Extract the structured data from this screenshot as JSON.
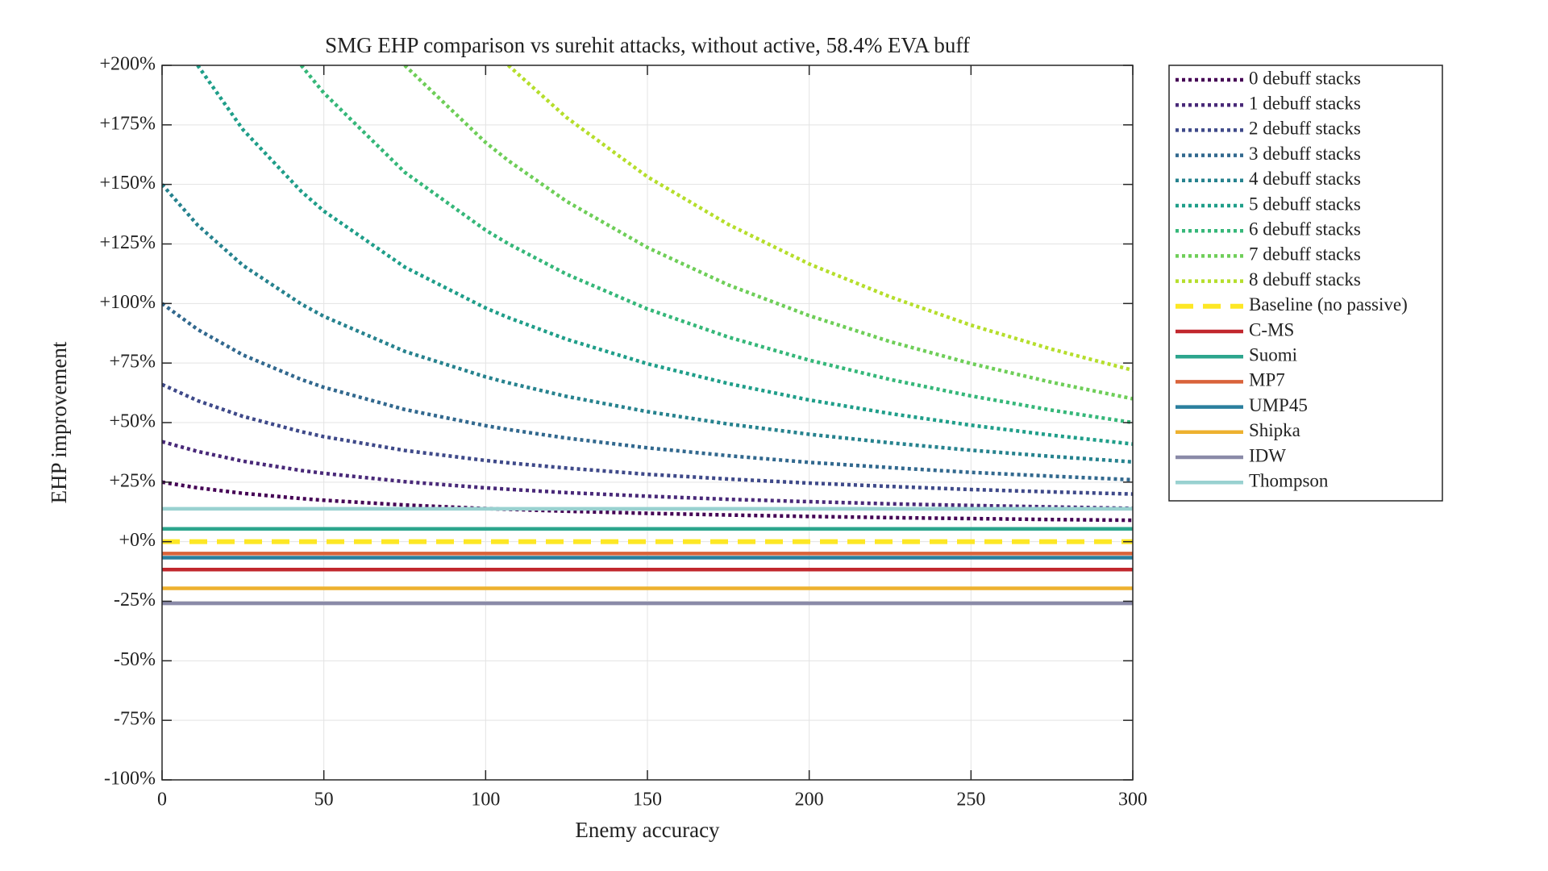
{
  "chart_data": {
    "type": "line",
    "title": "SMG EHP comparison vs surehit attacks, without active, 58.4% EVA buff",
    "x_label": "Enemy accuracy",
    "y_label": "EHP improvement",
    "x": [
      0,
      11,
      25,
      43,
      50,
      75,
      100,
      107,
      125,
      150,
      175,
      200,
      225,
      250,
      275,
      300
    ],
    "xlim": [
      0,
      300
    ],
    "xticks": [
      0,
      50,
      100,
      150,
      200,
      250,
      300
    ],
    "ylim": [
      -100,
      200
    ],
    "yticks": [
      {
        "value": -100,
        "label": "-100%"
      },
      {
        "value": -75,
        "label": "-75%"
      },
      {
        "value": -50,
        "label": "-50%"
      },
      {
        "value": -25,
        "label": "-25%"
      },
      {
        "value": 0,
        "label": "+0%"
      },
      {
        "value": 25,
        "label": "+25%"
      },
      {
        "value": 50,
        "label": "+50%"
      },
      {
        "value": 75,
        "label": "+75%"
      },
      {
        "value": 100,
        "label": "+100%"
      },
      {
        "value": 125,
        "label": "+125%"
      },
      {
        "value": 150,
        "label": "+150%"
      },
      {
        "value": 175,
        "label": "+175%"
      },
      {
        "value": 200,
        "label": "+200%"
      }
    ],
    "grid": true,
    "legend": "outside-right",
    "series": [
      {
        "name": "0 debuff stacks",
        "color": "#440154",
        "style": "dotted",
        "values": [
          25.0,
          22.6,
          20.3,
          18.1,
          17.4,
          15.4,
          13.9,
          13.6,
          12.8,
          11.9,
          11.2,
          10.6,
          10.1,
          9.7,
          9.3,
          9.0
        ]
      },
      {
        "name": "1 debuff stacks",
        "color": "#482878",
        "style": "dotted",
        "values": [
          42.0,
          37.9,
          33.8,
          29.9,
          28.7,
          25.2,
          22.6,
          22.0,
          20.6,
          19.1,
          17.8,
          16.8,
          15.9,
          15.2,
          14.6,
          14.0
        ]
      },
      {
        "name": "2 debuff stacks",
        "color": "#3e4989",
        "style": "dotted",
        "values": [
          66.0,
          59.2,
          52.6,
          46.2,
          44.1,
          38.3,
          34.1,
          33.1,
          30.9,
          28.3,
          26.3,
          24.6,
          23.2,
          21.9,
          20.9,
          20.0
        ]
      },
      {
        "name": "3 debuff stacks",
        "color": "#31688e",
        "style": "dotted",
        "values": [
          100.0,
          89.1,
          78.4,
          68.1,
          64.8,
          55.5,
          48.7,
          47.1,
          43.5,
          39.4,
          36.1,
          33.3,
          31.1,
          29.1,
          27.5,
          26.0
        ]
      },
      {
        "name": "4 debuff stacks",
        "color": "#26828e",
        "style": "dotted",
        "values": [
          150.0,
          132.9,
          116.0,
          99.8,
          94.6,
          79.9,
          69.2,
          66.7,
          61.0,
          54.6,
          49.4,
          45.1,
          41.5,
          38.4,
          35.8,
          33.5
        ]
      },
      {
        "name": "5 debuff stacks",
        "color": "#1f9e89",
        "style": "dotted",
        "values": [
          null,
          200.0,
          173.0,
          147.1,
          138.8,
          115.3,
          98.1,
          94.1,
          85.0,
          74.7,
          66.4,
          59.5,
          53.8,
          48.9,
          44.7,
          41.0
        ]
      },
      {
        "name": "6 debuff stacks",
        "color": "#35b779",
        "style": "dotted",
        "values": [
          null,
          null,
          null,
          200.0,
          188.4,
          155.1,
          130.8,
          125.1,
          112.3,
          97.7,
          85.9,
          76.2,
          68.1,
          61.2,
          55.2,
          50.0
        ]
      },
      {
        "name": "7 debuff stacks",
        "color": "#6ece58",
        "style": "dotted",
        "values": [
          null,
          null,
          null,
          null,
          null,
          200.0,
          167.6,
          160.0,
          142.9,
          123.5,
          107.8,
          94.9,
          84.0,
          74.8,
          66.9,
          60.0
        ]
      },
      {
        "name": "8 debuff stacks",
        "color": "#b5de2b",
        "style": "dotted",
        "values": [
          null,
          null,
          null,
          null,
          null,
          null,
          null,
          200.0,
          178.1,
          153.2,
          133.2,
          116.6,
          102.8,
          90.9,
          80.8,
          72.0
        ]
      },
      {
        "name": "Baseline (no passive)",
        "color": "#fde725",
        "style": "dashed",
        "values": [
          0,
          0,
          0,
          0,
          0,
          0,
          0,
          0,
          0,
          0,
          0,
          0,
          0,
          0,
          0,
          0
        ]
      },
      {
        "name": "C-MS",
        "color": "#c1272d",
        "style": "solid",
        "values": [
          -11.7,
          -11.7,
          -11.7,
          -11.7,
          -11.7,
          -11.7,
          -11.7,
          -11.7,
          -11.7,
          -11.7,
          -11.7,
          -11.7,
          -11.7,
          -11.7,
          -11.7,
          -11.7
        ]
      },
      {
        "name": "Suomi",
        "color": "#2ca58d",
        "style": "solid",
        "values": [
          5.4,
          5.4,
          5.4,
          5.4,
          5.4,
          5.4,
          5.4,
          5.4,
          5.4,
          5.4,
          5.4,
          5.4,
          5.4,
          5.4,
          5.4,
          5.4
        ]
      },
      {
        "name": "MP7",
        "color": "#d9633a",
        "style": "solid",
        "values": [
          -5.0,
          -5.0,
          -5.0,
          -5.0,
          -5.0,
          -5.0,
          -5.0,
          -5.0,
          -5.0,
          -5.0,
          -5.0,
          -5.0,
          -5.0,
          -5.0,
          -5.0,
          -5.0
        ]
      },
      {
        "name": "UMP45",
        "color": "#2a7f9e",
        "style": "solid",
        "values": [
          -6.7,
          -6.7,
          -6.7,
          -6.7,
          -6.7,
          -6.7,
          -6.7,
          -6.7,
          -6.7,
          -6.7,
          -6.7,
          -6.7,
          -6.7,
          -6.7,
          -6.7,
          -6.7
        ]
      },
      {
        "name": "Shipka",
        "color": "#edb12f",
        "style": "solid",
        "values": [
          -19.6,
          -19.6,
          -19.6,
          -19.6,
          -19.6,
          -19.6,
          -19.6,
          -19.6,
          -19.6,
          -19.6,
          -19.6,
          -19.6,
          -19.6,
          -19.6,
          -19.6,
          -19.6
        ]
      },
      {
        "name": "IDW",
        "color": "#8a8aa8",
        "style": "solid",
        "values": [
          -25.9,
          -25.9,
          -25.9,
          -25.9,
          -25.9,
          -25.9,
          -25.9,
          -25.9,
          -25.9,
          -25.9,
          -25.9,
          -25.9,
          -25.9,
          -25.9,
          -25.9,
          -25.9
        ]
      },
      {
        "name": "Thompson",
        "color": "#99d1d0",
        "style": "solid",
        "values": [
          13.8,
          13.8,
          13.8,
          13.8,
          13.8,
          13.8,
          13.8,
          13.8,
          13.8,
          13.8,
          13.8,
          13.8,
          13.8,
          13.8,
          13.8,
          13.8
        ]
      }
    ]
  }
}
